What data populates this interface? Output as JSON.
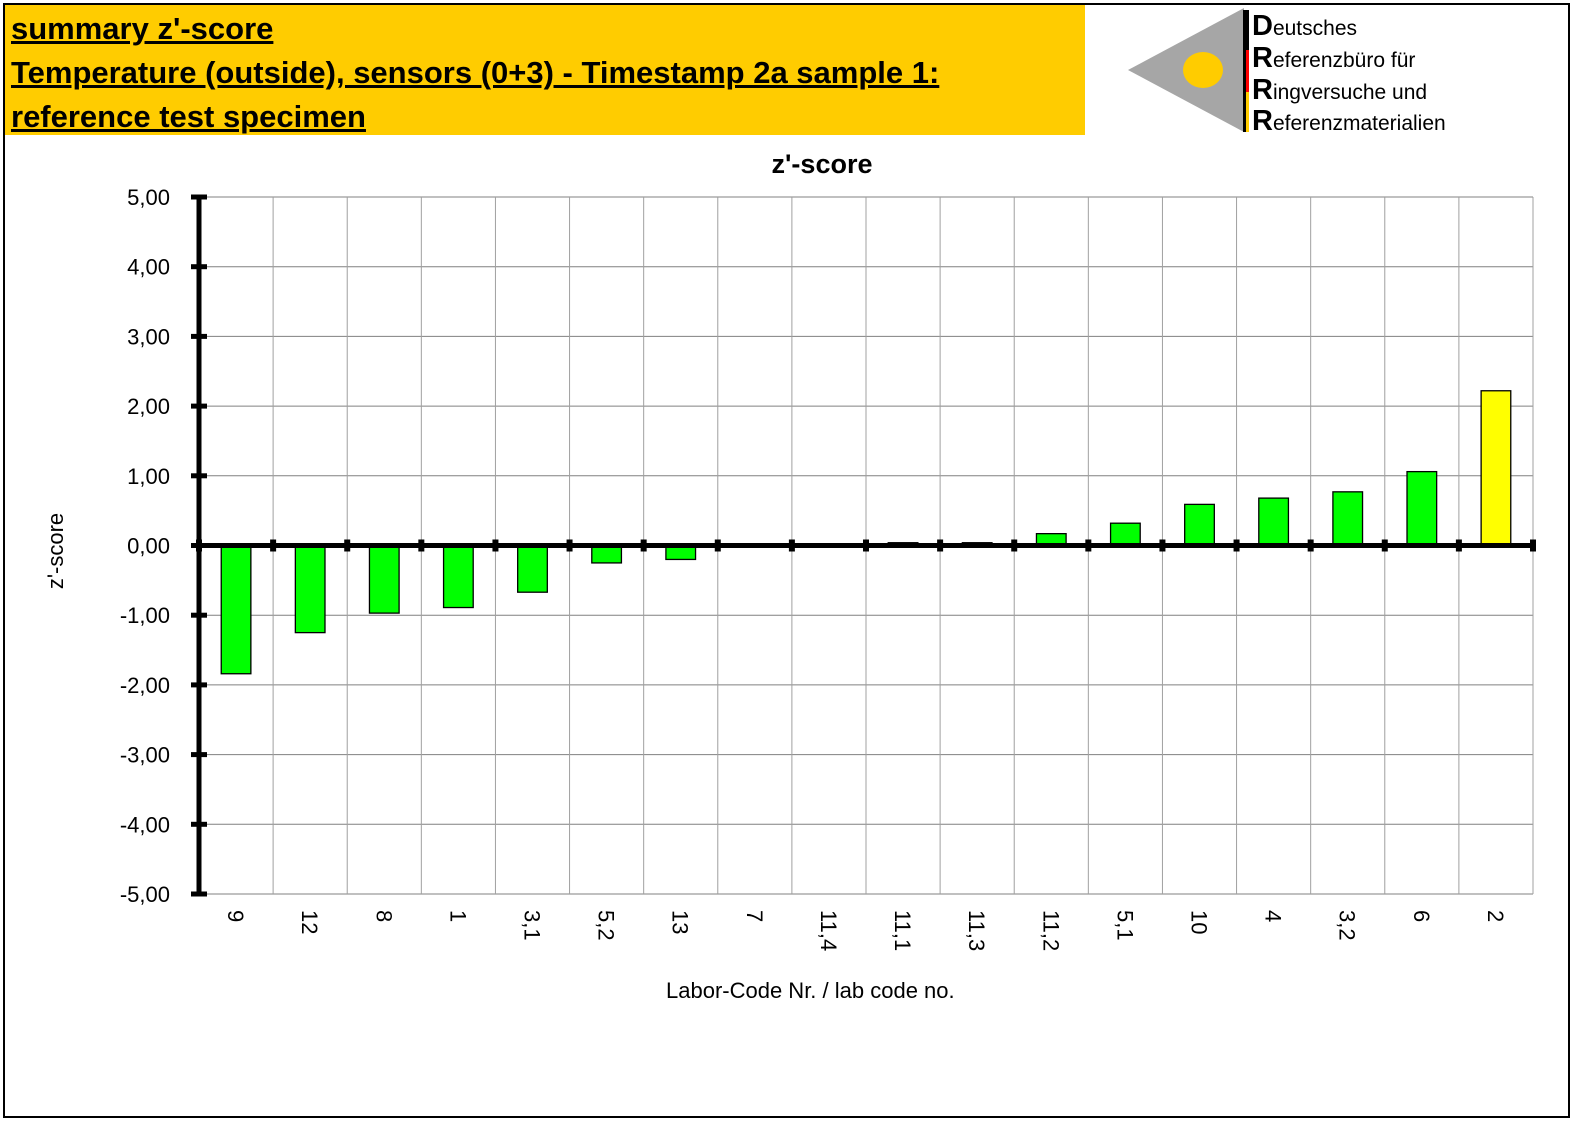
{
  "header": {
    "line1": "summary z'-score ",
    "line2": "Temperature (outside), sensors (0+3) - Timestamp 2a sample 1:",
    "line3": "reference test specimen",
    "background": "#ffcc00"
  },
  "logo": {
    "lines": [
      {
        "initial": "D",
        "rest": "eutsches"
      },
      {
        "initial": "R",
        "rest": "eferenzbüro für"
      },
      {
        "initial": "R",
        "rest": "ingversuche und"
      },
      {
        "initial": "R",
        "rest": "eferenzmaterialien"
      }
    ],
    "colors": {
      "triangle": "#a6a6a6",
      "circle": "#ffcc00",
      "bar_black": "#000000",
      "bar_red": "#ff0000",
      "bar_gold": "#ffcc00"
    }
  },
  "chart_data": {
    "type": "bar",
    "title": "z'-score",
    "xlabel": "Labor-Code Nr. / lab code no.",
    "ylabel": "z'-score",
    "ylim": [
      -5,
      5
    ],
    "yticks": [
      "5,00",
      "4,00",
      "3,00",
      "2,00",
      "1,00",
      "0,00",
      "-1,00",
      "-2,00",
      "-3,00",
      "-4,00",
      "-5,00"
    ],
    "categories": [
      "9",
      "12",
      "8",
      "1",
      "3,1",
      "5,2",
      "13",
      "7",
      "11,4",
      "11,1",
      "11,3",
      "11,2",
      "5,1",
      "10",
      "4",
      "3,2",
      "6",
      "2"
    ],
    "values": [
      -1.84,
      -1.25,
      -0.97,
      -0.89,
      -0.67,
      -0.25,
      -0.2,
      0.0,
      0.01,
      0.04,
      0.04,
      0.17,
      0.32,
      0.59,
      0.68,
      0.77,
      1.06,
      2.22
    ],
    "bar_colors": [
      "#00ff00",
      "#00ff00",
      "#00ff00",
      "#00ff00",
      "#00ff00",
      "#00ff00",
      "#00ff00",
      "#00ff00",
      "#00ff00",
      "#00ff00",
      "#00ff00",
      "#00ff00",
      "#00ff00",
      "#00ff00",
      "#00ff00",
      "#00ff00",
      "#00ff00",
      "#ffff00"
    ],
    "grid": true
  }
}
